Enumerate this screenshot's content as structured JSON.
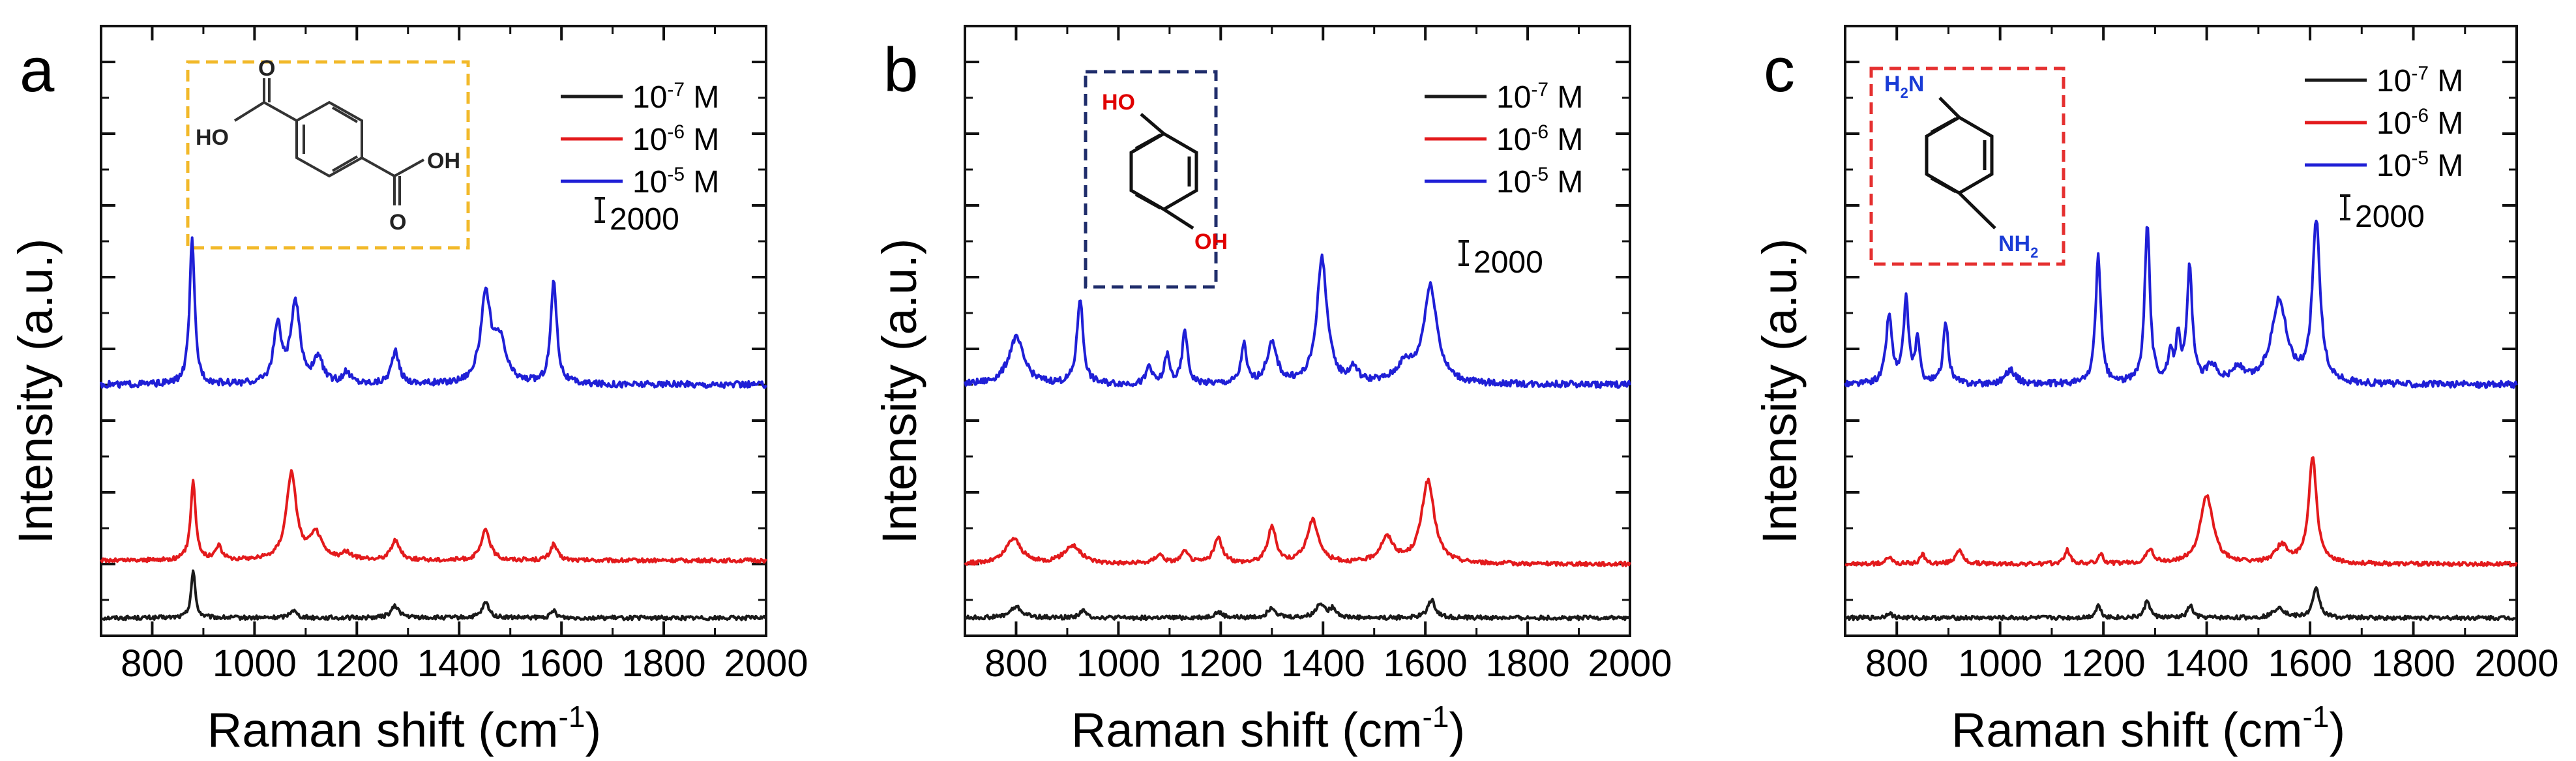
{
  "figure": {
    "description_free": true
  },
  "chart_data": [
    {
      "panel": "a",
      "type": "line",
      "xlabel": "Raman shift (cm",
      "xlabel_sup": "-1",
      "xlabel_end": ")",
      "ylabel": "Intensity (a.u.)",
      "xlim": [
        700,
        2000
      ],
      "ylim": [
        0,
        17000
      ],
      "xticks": [
        "800",
        "1000",
        "1200",
        "1400",
        "1600",
        "1800",
        "2000"
      ],
      "grid": false,
      "scale_bar_label": "2000",
      "scale_bar_value": 2000,
      "inset_box_color": "#f2b92a",
      "molecule": "terephthalic-acid",
      "molecule_labels": {
        "acid_left": "HO",
        "acid_right": "OH",
        "o1": "O",
        "o2": "O"
      },
      "legend": [
        {
          "base": "10",
          "exp": "-7",
          "unit": " M",
          "color": "#1a1a1a"
        },
        {
          "base": "10",
          "exp": "-6",
          "unit": " M",
          "color": "#e31a1c"
        },
        {
          "base": "10",
          "exp": "-5",
          "unit": " M",
          "color": "#1f1fd6"
        }
      ],
      "series": [
        {
          "name": "10^-7 M",
          "color": "#1a1a1a",
          "offset": 500,
          "peaks": [
            [
              880,
              1300,
              5
            ],
            [
              1075,
              220,
              8
            ],
            [
              1275,
              320,
              10
            ],
            [
              1452,
              420,
              8
            ],
            [
              1585,
              200,
              6
            ]
          ]
        },
        {
          "name": "10^-6 M",
          "color": "#e31a1c",
          "offset": 2100,
          "peaks": [
            [
              880,
              2200,
              6
            ],
            [
              930,
              400,
              7
            ],
            [
              1072,
              2400,
              12
            ],
            [
              1120,
              700,
              14
            ],
            [
              1180,
              200,
              10
            ],
            [
              1275,
              550,
              10
            ],
            [
              1452,
              850,
              10
            ],
            [
              1585,
              450,
              8
            ]
          ]
        },
        {
          "name": "10^-5 M",
          "color": "#1f1fd6",
          "offset": 7000,
          "peaks": [
            [
              878,
              4000,
              6
            ],
            [
              1045,
              1600,
              9
            ],
            [
              1080,
              2200,
              11
            ],
            [
              1125,
              700,
              10
            ],
            [
              1180,
              300,
              10
            ],
            [
              1275,
              900,
              9
            ],
            [
              1452,
              2400,
              12
            ],
            [
              1480,
              1100,
              14
            ],
            [
              1585,
              2900,
              7
            ]
          ]
        }
      ]
    },
    {
      "panel": "b",
      "type": "line",
      "xlabel": "Raman shift (cm",
      "xlabel_sup": "-1",
      "xlabel_end": ")",
      "ylabel": "Intensity (a.u.)",
      "xlim": [
        700,
        2000
      ],
      "ylim": [
        0,
        17000
      ],
      "xticks": [
        "800",
        "1000",
        "1200",
        "1400",
        "1600",
        "1800",
        "2000"
      ],
      "grid": false,
      "scale_bar_label": "2000",
      "scale_bar_value": 2000,
      "inset_box_color": "#1f2d6b",
      "molecule": "hydroquinone",
      "molecule_labels": {
        "oh_top": "HO",
        "oh_bottom": "OH"
      },
      "legend": [
        {
          "base": "10",
          "exp": "-7",
          "unit": " M",
          "color": "#1a1a1a"
        },
        {
          "base": "10",
          "exp": "-6",
          "unit": " M",
          "color": "#e31a1c"
        },
        {
          "base": "10",
          "exp": "-5",
          "unit": " M",
          "color": "#1f1fd6"
        }
      ],
      "series": [
        {
          "name": "10^-7 M",
          "color": "#1a1a1a",
          "offset": 500,
          "peaks": [
            [
              800,
              300,
              14
            ],
            [
              930,
              200,
              8
            ],
            [
              1195,
              150,
              10
            ],
            [
              1300,
              300,
              9
            ],
            [
              1395,
              400,
              10
            ],
            [
              1420,
              250,
              8
            ],
            [
              1612,
              500,
              9
            ]
          ]
        },
        {
          "name": "10^-6 M",
          "color": "#e31a1c",
          "offset": 2000,
          "peaks": [
            [
              795,
              700,
              18
            ],
            [
              910,
              500,
              20
            ],
            [
              1080,
              250,
              10
            ],
            [
              1130,
              300,
              10
            ],
            [
              1195,
              700,
              10
            ],
            [
              1300,
              1000,
              10
            ],
            [
              1380,
              1200,
              14
            ],
            [
              1525,
              700,
              16
            ],
            [
              1605,
              2300,
              15
            ]
          ]
        },
        {
          "name": "10^-5 M",
          "color": "#1f1fd6",
          "offset": 7000,
          "peaks": [
            [
              800,
              1300,
              18
            ],
            [
              925,
              2400,
              7
            ],
            [
              1060,
              500,
              6
            ],
            [
              1095,
              800,
              6
            ],
            [
              1130,
              1500,
              6
            ],
            [
              1245,
              1100,
              6
            ],
            [
              1300,
              1100,
              12
            ],
            [
              1398,
              3500,
              12
            ],
            [
              1460,
              400,
              10
            ],
            [
              1560,
              500,
              20
            ],
            [
              1610,
              2700,
              16
            ]
          ]
        }
      ]
    },
    {
      "panel": "c",
      "type": "line",
      "xlabel": "Raman shift (cm",
      "xlabel_sup": "-1",
      "xlabel_end": ")",
      "ylabel": "Intensity (a.u.)",
      "xlim": [
        700,
        2000
      ],
      "ylim": [
        0,
        17000
      ],
      "xticks": [
        "800",
        "1000",
        "1200",
        "1400",
        "1600",
        "1800",
        "2000"
      ],
      "grid": false,
      "scale_bar_label": "2000",
      "scale_bar_value": 2000,
      "inset_box_color": "#e53030",
      "molecule": "p-phenylenediamine",
      "molecule_labels": {
        "n_top": "H",
        "n_top_sub": "2",
        "n_top_n": "N",
        "n_bottom_n": "NH",
        "n_bottom_sub": "2"
      },
      "legend": [
        {
          "base": "10",
          "exp": "-7",
          "unit": " M",
          "color": "#1a1a1a"
        },
        {
          "base": "10",
          "exp": "-6",
          "unit": " M",
          "color": "#e31a1c"
        },
        {
          "base": "10",
          "exp": "-5",
          "unit": " M",
          "color": "#1f1fd6"
        }
      ],
      "series": [
        {
          "name": "10^-7 M",
          "color": "#1a1a1a",
          "offset": 500,
          "peaks": [
            [
              785,
              150,
              6
            ],
            [
              1190,
              350,
              6
            ],
            [
              1285,
              500,
              6
            ],
            [
              1368,
              350,
              6
            ],
            [
              1540,
              300,
              12
            ],
            [
              1612,
              800,
              8
            ]
          ]
        },
        {
          "name": "10^-6 M",
          "color": "#e31a1c",
          "offset": 2000,
          "peaks": [
            [
              785,
              200,
              6
            ],
            [
              850,
              250,
              6
            ],
            [
              920,
              400,
              8
            ],
            [
              1130,
              400,
              6
            ],
            [
              1195,
              250,
              6
            ],
            [
              1290,
              400,
              8
            ],
            [
              1400,
              1900,
              15
            ],
            [
              1545,
              500,
              15
            ],
            [
              1605,
              3000,
              9
            ]
          ]
        },
        {
          "name": "10^-5 M",
          "color": "#1f1fd6",
          "offset": 7000,
          "peaks": [
            [
              785,
              1900,
              7
            ],
            [
              818,
              2300,
              6
            ],
            [
              840,
              1200,
              5
            ],
            [
              895,
              1700,
              6
            ],
            [
              1020,
              400,
              12
            ],
            [
              1190,
              3600,
              6
            ],
            [
              1285,
              4500,
              6
            ],
            [
              1330,
              700,
              6
            ],
            [
              1345,
              1300,
              5
            ],
            [
              1367,
              3200,
              6
            ],
            [
              1410,
              500,
              12
            ],
            [
              1460,
              400,
              12
            ],
            [
              1540,
              2300,
              18
            ],
            [
              1612,
              4500,
              9
            ]
          ]
        }
      ]
    }
  ]
}
